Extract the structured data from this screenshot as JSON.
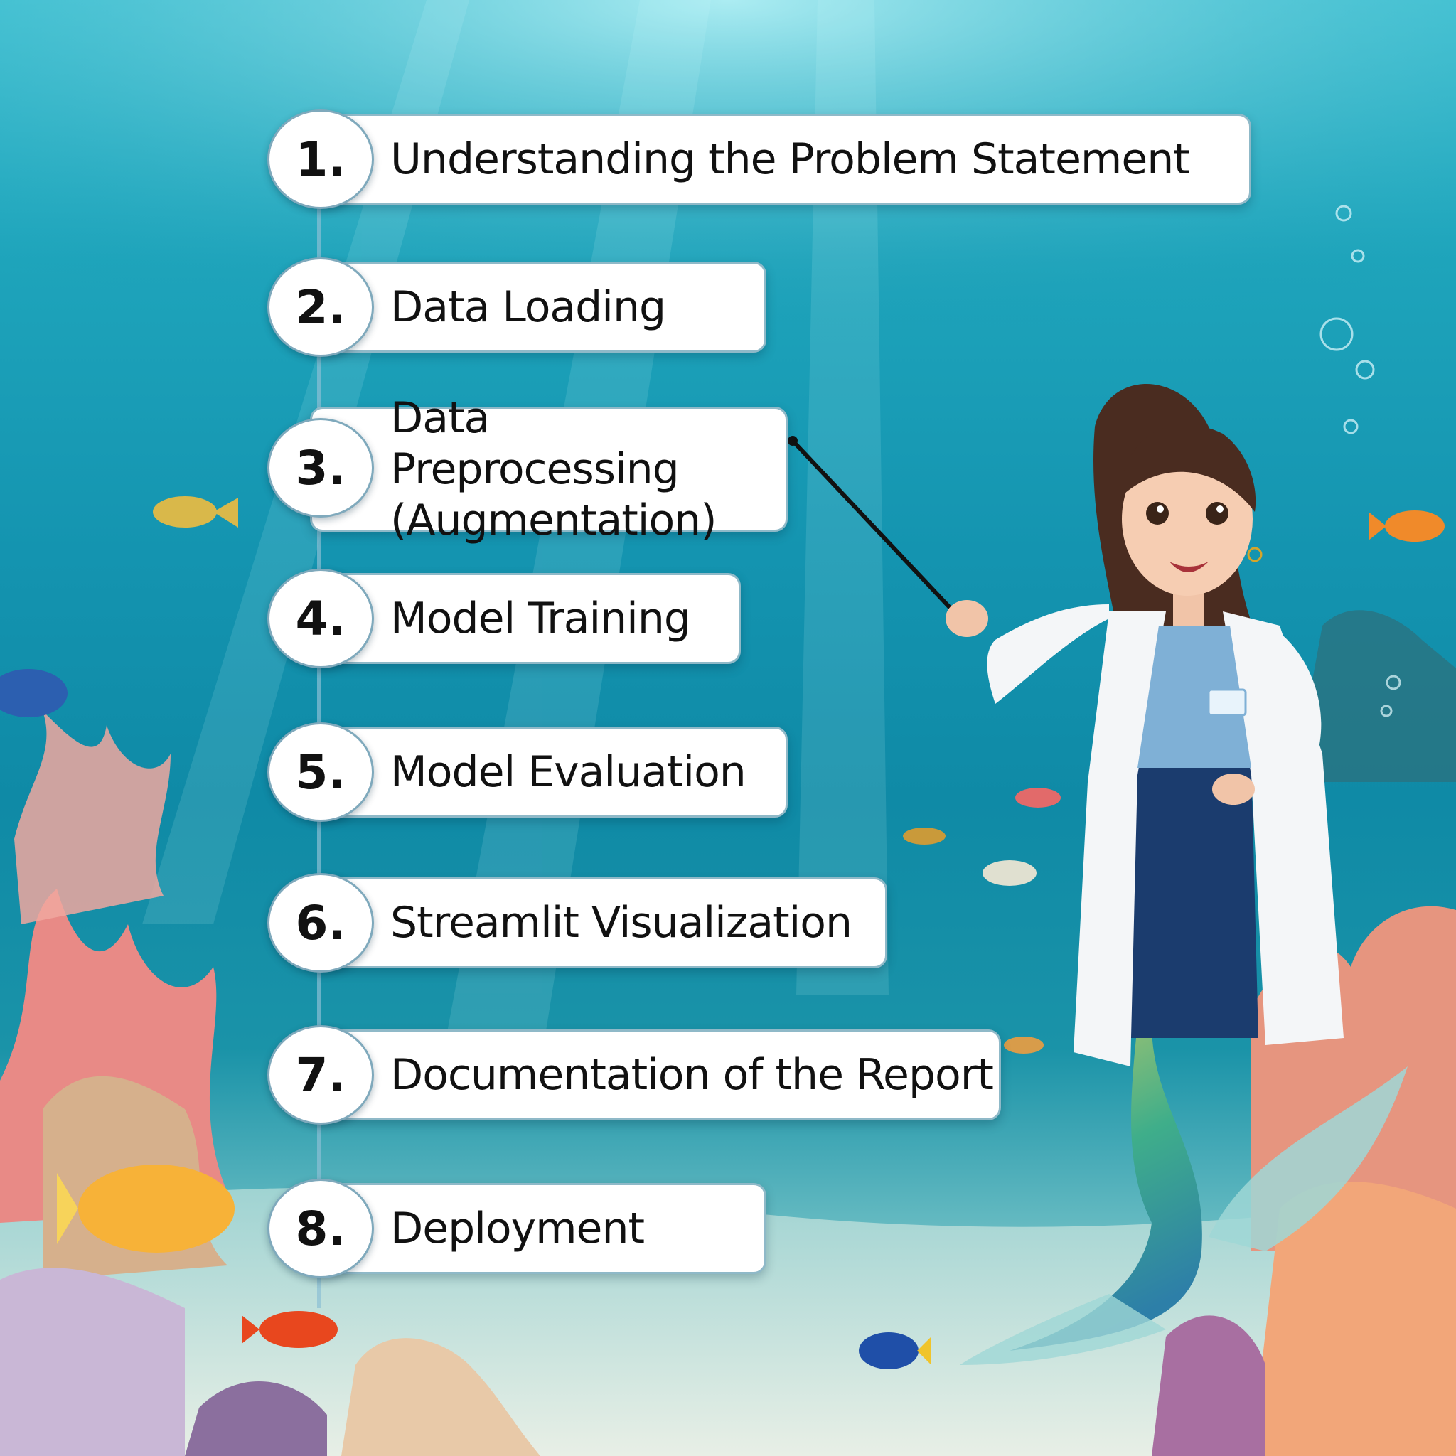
{
  "steps": [
    {
      "number": "1.",
      "label": "Understanding the Problem Statement"
    },
    {
      "number": "2.",
      "label": "Data Loading"
    },
    {
      "number": "3.",
      "label": "Data Preprocessing (Augmentation)"
    },
    {
      "number": "4.",
      "label": "Model Training"
    },
    {
      "number": "5.",
      "label": "Model Evaluation"
    },
    {
      "number": "6.",
      "label": "Streamlit Visualization"
    },
    {
      "number": "7.",
      "label": "Documentation of the Report"
    },
    {
      "number": "8.",
      "label": "Deployment"
    }
  ],
  "colors": {
    "water_top": "#3fc6d6",
    "water_mid": "#1494b0",
    "sand": "#c9e2da",
    "card_border": "#8fb9c8",
    "coral_pink": "#e88a86",
    "lab_coat": "#ffffff",
    "tail_green": "#3fae8a"
  },
  "illustration": {
    "character": "mermaid-scientist",
    "props": [
      "pointer-stick",
      "lab-coat",
      "name-badge"
    ],
    "background": "underwater-coral-reef"
  }
}
